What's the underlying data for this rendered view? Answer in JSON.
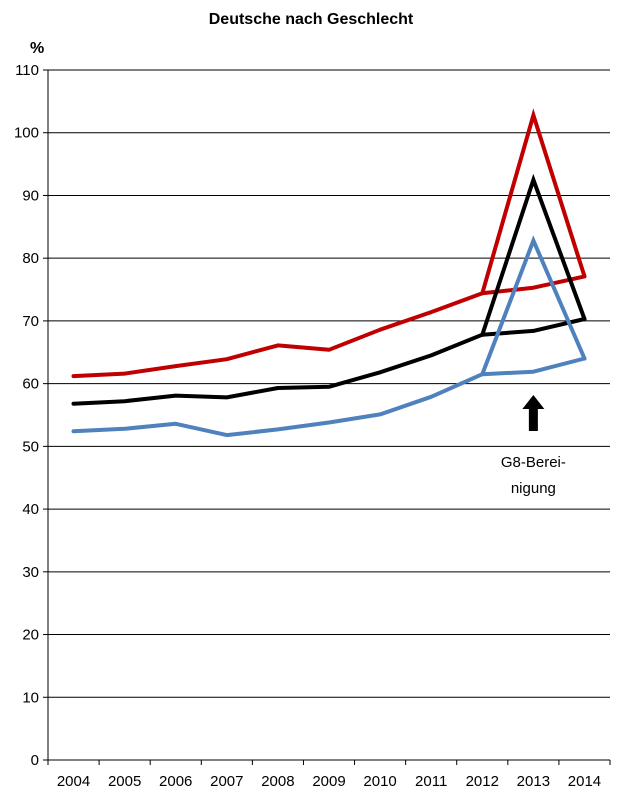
{
  "chart_data": {
    "type": "line",
    "title": "Deutsche nach Geschlecht",
    "ylabel": "%",
    "xlabel": "",
    "ylim": [
      0,
      110
    ],
    "yticks": [
      0,
      10,
      20,
      30,
      40,
      50,
      60,
      70,
      80,
      90,
      100,
      110
    ],
    "grid": true,
    "categories": [
      "2004",
      "2005",
      "2006",
      "2007",
      "2008",
      "2009",
      "2010",
      "2011",
      "2012",
      "2013",
      "2014"
    ],
    "series": [
      {
        "color": "#c00000",
        "points": [
          [
            0,
            61.2
          ],
          [
            1,
            61.6
          ],
          [
            2,
            62.8
          ],
          [
            3,
            63.9
          ],
          [
            4,
            66.1
          ],
          [
            5,
            65.4
          ],
          [
            6,
            68.6
          ],
          [
            7,
            71.4
          ],
          [
            8,
            74.4
          ],
          [
            9,
            75.3
          ],
          [
            10,
            77.1
          ]
        ],
        "g8_peak": [
          [
            8,
            74.4
          ],
          [
            9,
            102.8
          ],
          [
            10,
            77.1
          ]
        ]
      },
      {
        "color": "#000000",
        "points": [
          [
            0,
            56.8
          ],
          [
            1,
            57.2
          ],
          [
            2,
            58.1
          ],
          [
            3,
            57.8
          ],
          [
            4,
            59.3
          ],
          [
            5,
            59.5
          ],
          [
            6,
            61.8
          ],
          [
            7,
            64.5
          ],
          [
            8,
            67.8
          ],
          [
            9,
            68.4
          ],
          [
            10,
            70.3
          ]
        ],
        "g8_peak": [
          [
            8,
            67.8
          ],
          [
            9,
            92.5
          ],
          [
            10,
            70.3
          ]
        ]
      },
      {
        "color": "#4f81bd",
        "points": [
          [
            0,
            52.4
          ],
          [
            1,
            52.8
          ],
          [
            2,
            53.6
          ],
          [
            3,
            51.8
          ],
          [
            4,
            52.7
          ],
          [
            5,
            53.8
          ],
          [
            6,
            55.1
          ],
          [
            7,
            57.9
          ],
          [
            8,
            61.5
          ],
          [
            9,
            61.9
          ],
          [
            10,
            64.0
          ]
        ],
        "g8_peak": [
          [
            8,
            61.5
          ],
          [
            9,
            82.8
          ],
          [
            10,
            64.0
          ]
        ]
      }
    ],
    "annotations": [
      {
        "text_lines": [
          "G8-Berei-",
          "nigung"
        ],
        "x": 9,
        "arrow": "up"
      }
    ]
  }
}
